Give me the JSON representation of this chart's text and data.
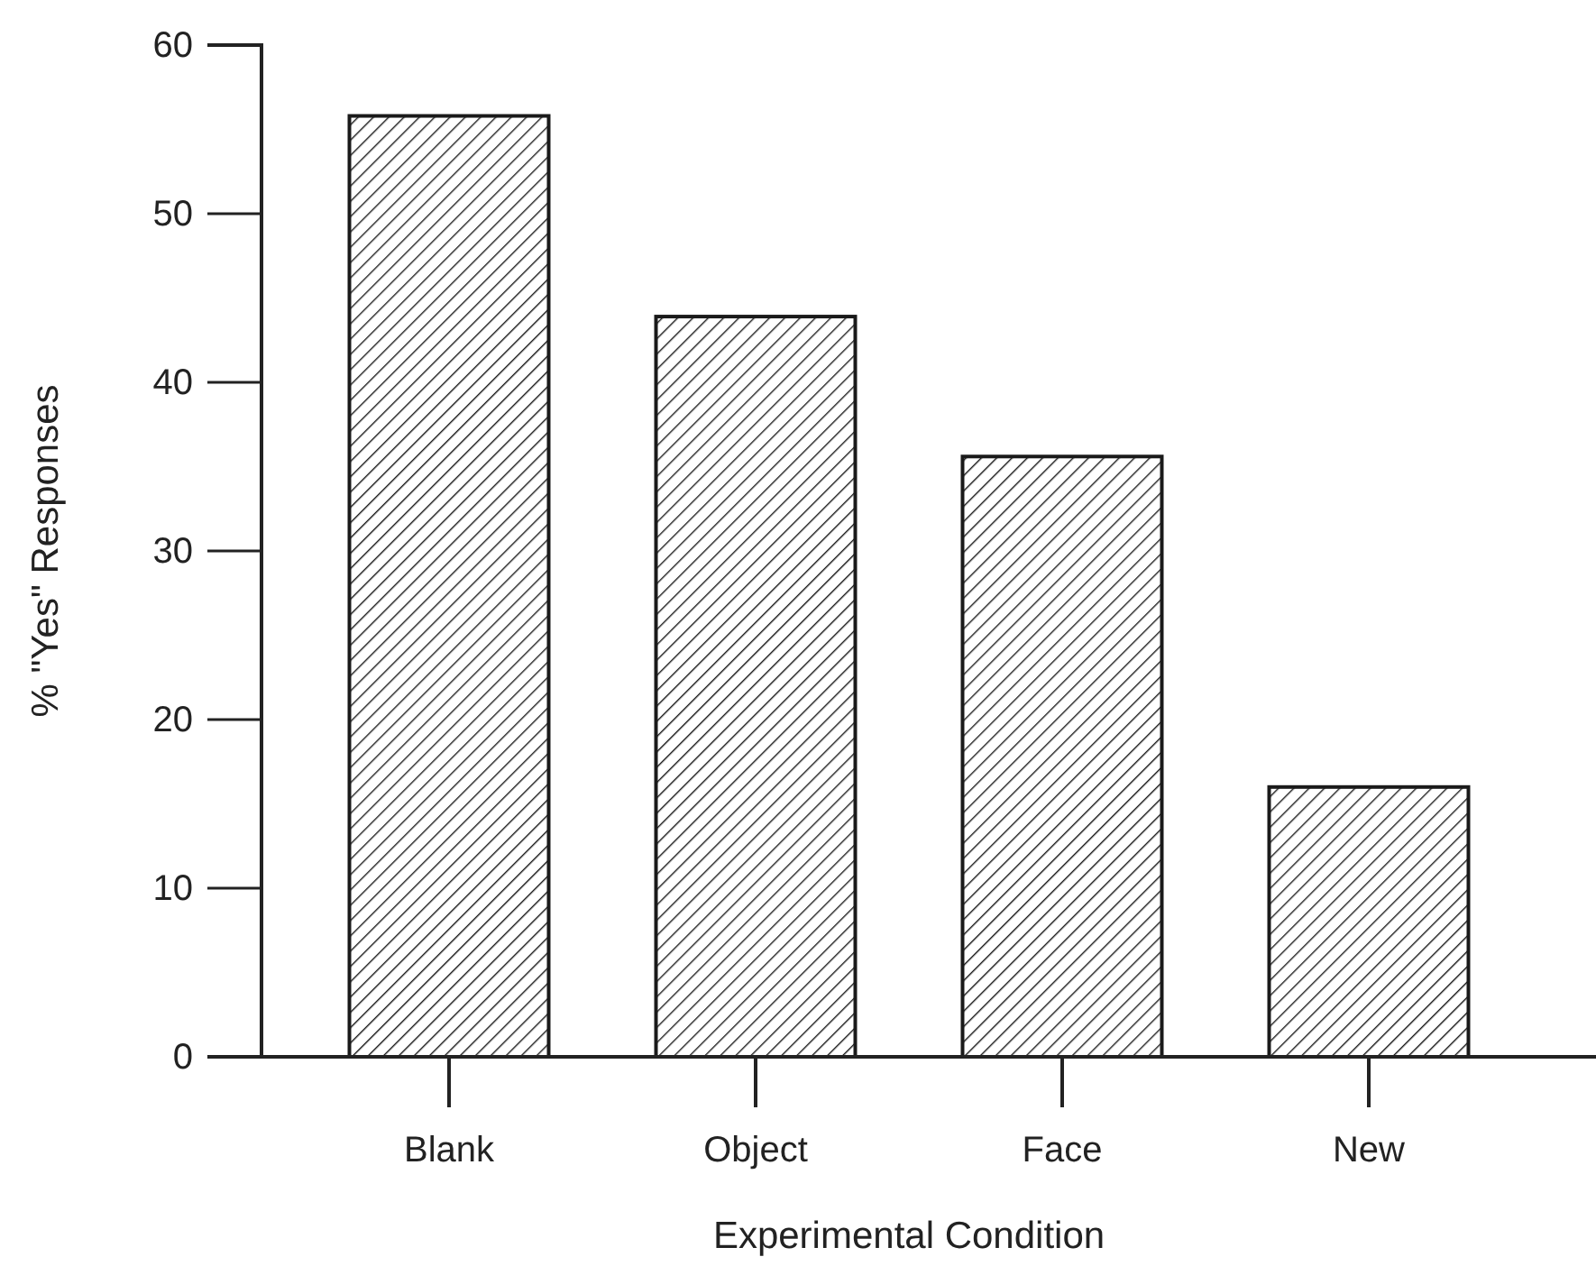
{
  "chart_data": {
    "type": "bar",
    "xlabel": "Experimental Condition",
    "ylabel": "% \"Yes\" Responses",
    "categories": [
      "Blank",
      "Object",
      "Face",
      "New"
    ],
    "values": [
      55.8,
      43.9,
      35.6,
      16.0
    ],
    "color": "#1a1a1a",
    "ylim": [
      0,
      60
    ],
    "yticks": [
      0,
      10,
      20,
      30,
      40,
      50,
      60
    ],
    "grid": false
  }
}
